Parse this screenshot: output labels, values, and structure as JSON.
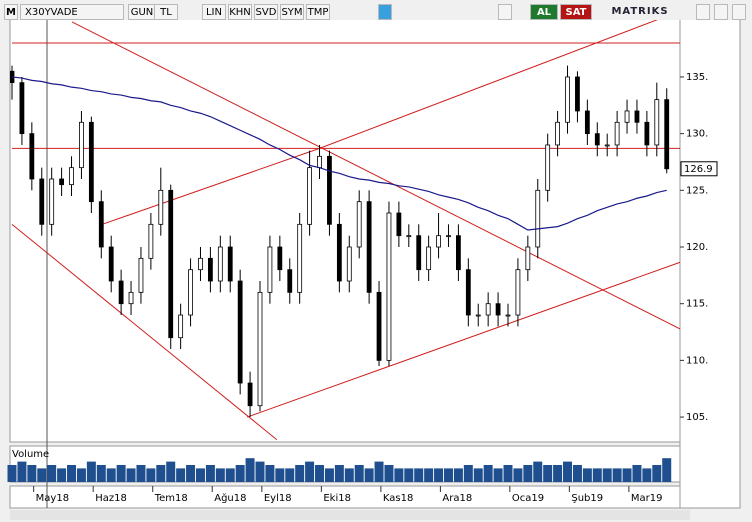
{
  "toolbar": {
    "logo": "M",
    "symbol": "X30YVADE",
    "buttons": [
      "GUN",
      "TL",
      "LIN",
      "KHN",
      "SVD",
      "SYM",
      "TMP"
    ],
    "buy": "AL",
    "sell": "SAT",
    "brand": "MATRIKS"
  },
  "chart_data": {
    "type": "candlestick",
    "volume_label": "Volume",
    "last_label": "126.9",
    "categories": [
      null,
      null,
      null,
      null,
      "May18",
      null,
      null,
      null,
      null,
      null,
      "Haz18",
      null,
      null,
      null,
      null,
      null,
      "Tem18",
      null,
      null,
      null,
      null,
      null,
      "Ağu18",
      null,
      null,
      null,
      null,
      "Eyl18",
      null,
      null,
      null,
      null,
      null,
      "Eki18",
      null,
      null,
      null,
      null,
      null,
      "Kas18",
      null,
      null,
      null,
      null,
      null,
      "Ara18",
      null,
      null,
      null,
      null,
      null,
      null,
      "Oca19",
      null,
      null,
      null,
      null,
      null,
      "Şub19",
      null,
      null,
      null,
      null,
      null,
      "Mar19",
      null,
      null
    ],
    "open": [
      135.5,
      134.5,
      130,
      126,
      122,
      126,
      125.5,
      127,
      131,
      124,
      120,
      117,
      115,
      116,
      119,
      122,
      125,
      112,
      114,
      118,
      119,
      117,
      120,
      117,
      108,
      106,
      116,
      120,
      118,
      116,
      122,
      127,
      128,
      122,
      117,
      120,
      124,
      116,
      110,
      123,
      121,
      121,
      118,
      120,
      121,
      121,
      118,
      114,
      114,
      115,
      114,
      114,
      118,
      120,
      125,
      129,
      131,
      135,
      132,
      130,
      129,
      129,
      131,
      132,
      131,
      129,
      133
    ],
    "high": [
      136,
      135,
      131,
      127,
      127,
      127,
      128,
      132,
      131.5,
      125,
      121,
      118,
      117,
      120,
      123,
      127,
      125.5,
      115,
      119,
      120,
      120,
      121,
      121,
      118,
      109,
      117,
      121,
      121,
      119,
      123,
      128.5,
      129,
      128.5,
      123,
      121,
      125,
      125,
      117,
      124,
      124,
      122,
      122,
      121,
      123,
      122,
      122,
      119,
      115,
      116,
      116,
      115,
      119,
      121,
      126,
      130,
      132,
      136,
      135.5,
      133,
      131,
      130,
      132,
      133,
      133,
      132,
      134.5,
      134
    ],
    "low": [
      133,
      129,
      125,
      121,
      121,
      124.5,
      124.5,
      126,
      123,
      119,
      116,
      114,
      114,
      115,
      118,
      121,
      111,
      111,
      113,
      117,
      116,
      116,
      116,
      107,
      105,
      105.5,
      115,
      117,
      115,
      115,
      121,
      126,
      121,
      116,
      116,
      119,
      115,
      109.5,
      109.5,
      120,
      120,
      117,
      117,
      119,
      120,
      117,
      113,
      113,
      113,
      113,
      113,
      113,
      117,
      119,
      124,
      128,
      130,
      131,
      129,
      128,
      128,
      128,
      130,
      130,
      128,
      128,
      126.5
    ],
    "close": [
      134.5,
      130,
      126,
      122,
      126,
      125.5,
      127,
      131,
      124,
      120,
      117,
      115,
      116,
      119,
      122,
      125,
      112,
      114,
      118,
      119,
      117,
      120,
      117,
      108,
      106,
      116,
      120,
      118,
      116,
      122,
      127,
      128,
      122,
      117,
      120,
      124,
      116,
      110,
      123,
      121,
      121,
      118,
      120,
      121,
      121,
      118,
      114,
      114,
      115,
      114,
      114,
      118,
      120,
      125,
      129,
      131,
      135,
      132,
      130,
      129,
      129,
      131,
      132,
      131,
      129,
      133,
      126.9
    ],
    "ma": {
      "color": "#1a1a8c",
      "values": [
        135,
        134.9,
        134.7,
        134.6,
        134.4,
        134.3,
        134.1,
        134,
        133.8,
        133.7,
        133.5,
        133.4,
        133.2,
        133.1,
        132.9,
        132.8,
        132.5,
        132.3,
        132,
        131.8,
        131.5,
        131.1,
        130.7,
        130.3,
        129.9,
        129.5,
        129,
        128.6,
        128.1,
        127.7,
        127.2,
        127,
        126.7,
        126.5,
        126.2,
        126,
        125.9,
        125.7,
        125.6,
        125.4,
        125.3,
        125.1,
        124.9,
        124.6,
        124.4,
        124.2,
        123.9,
        123.5,
        123.2,
        122.8,
        122.5,
        122,
        121.5,
        121.6,
        121.7,
        121.8,
        122.1,
        122.5,
        122.8,
        123.2,
        123.5,
        123.8,
        124,
        124.3,
        124.5,
        124.8,
        125
      ]
    },
    "volume": {
      "color": "#1f4f8f",
      "values": [
        5,
        6,
        5,
        4,
        5,
        4,
        5,
        4,
        6,
        5,
        4,
        5,
        4,
        5,
        4,
        5,
        6,
        4,
        5,
        4,
        5,
        4,
        4,
        5,
        7,
        6,
        5,
        4,
        4,
        5,
        6,
        5,
        4,
        5,
        4,
        5,
        4,
        6,
        5,
        4,
        4,
        4,
        4,
        4,
        4,
        4,
        5,
        4,
        5,
        4,
        5,
        4,
        5,
        6,
        5,
        5,
        6,
        5,
        4,
        4,
        4,
        4,
        4,
        5,
        4,
        5,
        7
      ],
      "ylim": [
        0,
        10
      ]
    },
    "trendlines": {
      "color": "#d02020",
      "lines": [
        {
          "x": [
            0,
            67.5
          ],
          "y": [
            138,
            138
          ]
        },
        {
          "x": [
            0,
            67.5
          ],
          "y": [
            128.7,
            128.7
          ]
        },
        {
          "x": [
            6.05,
            67.5
          ],
          "y": [
            139.85,
            112.7
          ]
        },
        {
          "x": [
            0,
            26.7
          ],
          "y": [
            122,
            103
          ]
        },
        {
          "x": [
            23.7,
            67.5
          ],
          "y": [
            105,
            118.7
          ]
        },
        {
          "x": [
            9.1,
            31
          ],
          "y": [
            122,
            128.7
          ]
        },
        {
          "x": [
            31,
            65.5
          ],
          "y": [
            128.7,
            140.2
          ]
        }
      ]
    },
    "ylim": [
      102.8,
      140.2
    ],
    "yticks": [
      {
        "value": 105,
        "label": "105."
      },
      {
        "value": 110,
        "label": "110."
      },
      {
        "value": 115,
        "label": "115."
      },
      {
        "value": 120,
        "label": "120."
      },
      {
        "value": 125,
        "label": "125."
      },
      {
        "value": 130,
        "label": "130."
      },
      {
        "value": 135,
        "label": "135."
      }
    ]
  }
}
